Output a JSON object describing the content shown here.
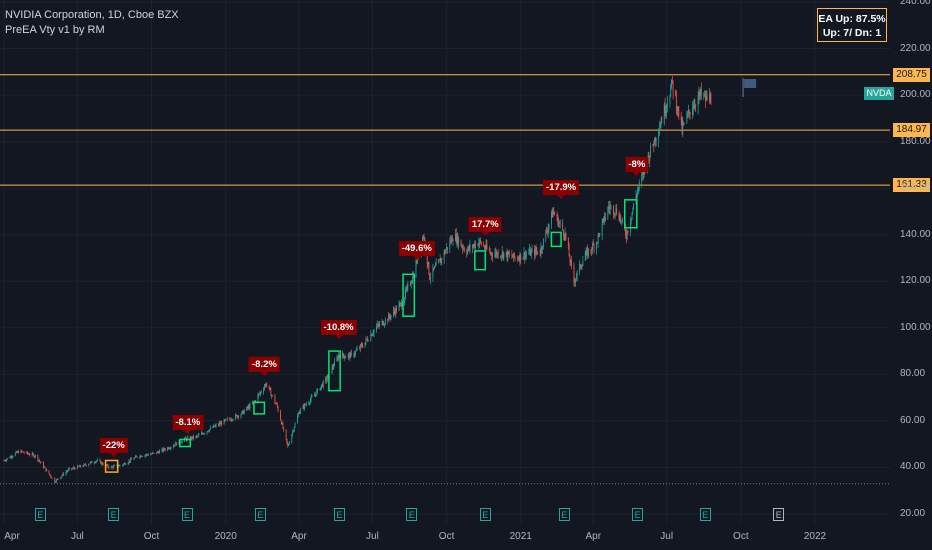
{
  "header": {
    "line1": "NVIDIA Corporation, 1D, Cboe BZX",
    "line2": "PreEA Vty v1 by RM"
  },
  "stats": {
    "line1": "EA Up: 87.5%",
    "line2": "Up: 7/ Dn: 1"
  },
  "ticker": "NVDA",
  "colors": {
    "background": "#131722",
    "up_candle": "#26a69a",
    "down_candle": "#ef5350",
    "level_line": "#ffb74d",
    "box_green": "#00e676",
    "box_orange": "#ffa726",
    "label_red": "#8b0000"
  },
  "chart_data": {
    "type": "candlestick",
    "title": "NVIDIA Corporation, 1D, Cboe BZX",
    "x_axis": [
      "Apr",
      "Jul",
      "Oct",
      "2020",
      "Apr",
      "Jul",
      "Oct",
      "2021",
      "Apr",
      "Jul",
      "Oct",
      "2022"
    ],
    "y_axis": {
      "ticks": [
        "20.00",
        "40.00",
        "60.00",
        "80.00",
        "100.00",
        "120.00",
        "140.00",
        "160.00",
        "180.00",
        "200.00",
        "220.00",
        "240.00"
      ],
      "range": [
        15,
        240
      ]
    },
    "price_levels": [
      {
        "value": "208.75",
        "color": "#ffb74d"
      },
      {
        "value": "184.97",
        "color": "#ffb74d"
      },
      {
        "value": "161.33",
        "color": "#ffb74d"
      }
    ],
    "dotted_level": 33,
    "price_path": [
      [
        "2019-04-01",
        43
      ],
      [
        "2019-04-20",
        47
      ],
      [
        "2019-05-10",
        45
      ],
      [
        "2019-05-25",
        38
      ],
      [
        "2019-06-03",
        34
      ],
      [
        "2019-06-20",
        39
      ],
      [
        "2019-07-10",
        41
      ],
      [
        "2019-07-25",
        43
      ],
      [
        "2019-08-10",
        40
      ],
      [
        "2019-08-25",
        41
      ],
      [
        "2019-09-15",
        45
      ],
      [
        "2019-10-05",
        46
      ],
      [
        "2019-10-25",
        49
      ],
      [
        "2019-11-10",
        52
      ],
      [
        "2019-11-25",
        53
      ],
      [
        "2019-12-15",
        57
      ],
      [
        "2020-01-01",
        60
      ],
      [
        "2020-01-20",
        63
      ],
      [
        "2020-02-05",
        68
      ],
      [
        "2020-02-20",
        76
      ],
      [
        "2020-03-05",
        66
      ],
      [
        "2020-03-18",
        49
      ],
      [
        "2020-04-01",
        64
      ],
      [
        "2020-04-20",
        71
      ],
      [
        "2020-05-05",
        78
      ],
      [
        "2020-05-20",
        88
      ],
      [
        "2020-06-05",
        88
      ],
      [
        "2020-06-20",
        93
      ],
      [
        "2020-07-05",
        100
      ],
      [
        "2020-07-20",
        104
      ],
      [
        "2020-08-05",
        110
      ],
      [
        "2020-08-20",
        122
      ],
      [
        "2020-09-02",
        140
      ],
      [
        "2020-09-10",
        122
      ],
      [
        "2020-09-25",
        130
      ],
      [
        "2020-10-10",
        140
      ],
      [
        "2020-10-25",
        133
      ],
      [
        "2020-11-10",
        137
      ],
      [
        "2020-11-25",
        132
      ],
      [
        "2020-12-10",
        132
      ],
      [
        "2020-12-25",
        130
      ],
      [
        "2021-01-10",
        132
      ],
      [
        "2021-01-25",
        133
      ],
      [
        "2021-02-10",
        150
      ],
      [
        "2021-02-25",
        140
      ],
      [
        "2021-03-08",
        120
      ],
      [
        "2021-03-20",
        130
      ],
      [
        "2021-04-05",
        137
      ],
      [
        "2021-04-20",
        152
      ],
      [
        "2021-05-01",
        150
      ],
      [
        "2021-05-12",
        140
      ],
      [
        "2021-05-25",
        158
      ],
      [
        "2021-06-10",
        175
      ],
      [
        "2021-06-25",
        190
      ],
      [
        "2021-07-08",
        205
      ],
      [
        "2021-07-20",
        185
      ],
      [
        "2021-08-01",
        195
      ],
      [
        "2021-08-12",
        200
      ],
      [
        "2021-08-20",
        198
      ],
      [
        "2021-08-25",
        200
      ]
    ],
    "earnings_boxes": [
      {
        "x0": "2019-08-05",
        "x1": "2019-08-20",
        "y0": 38,
        "y1": 43,
        "color": "orange"
      },
      {
        "x0": "2019-11-05",
        "x1": "2019-11-18",
        "y0": 49,
        "y1": 52,
        "color": "green"
      },
      {
        "x0": "2020-02-05",
        "x1": "2020-02-18",
        "y0": 63,
        "y1": 68,
        "color": "green"
      },
      {
        "x0": "2020-05-08",
        "x1": "2020-05-22",
        "y0": 73,
        "y1": 90,
        "color": "green"
      },
      {
        "x0": "2020-08-08",
        "x1": "2020-08-22",
        "y0": 105,
        "y1": 123,
        "color": "green"
      },
      {
        "x0": "2020-11-05",
        "x1": "2020-11-18",
        "y0": 125,
        "y1": 133,
        "color": "green"
      },
      {
        "x0": "2021-02-08",
        "x1": "2021-02-20",
        "y0": 135,
        "y1": 141,
        "color": "green"
      },
      {
        "x0": "2021-05-10",
        "x1": "2021-05-25",
        "y0": 143,
        "y1": 155,
        "color": "green"
      }
    ],
    "earnings_labels": [
      {
        "date": "2019-08-15",
        "price": 46,
        "text": "-22%"
      },
      {
        "date": "2019-11-15",
        "price": 56,
        "text": "-8.1%"
      },
      {
        "date": "2020-02-18",
        "price": 81,
        "text": "-8.2%"
      },
      {
        "date": "2020-05-20",
        "price": 97,
        "text": "-10.8%"
      },
      {
        "date": "2020-08-25",
        "price": 131,
        "text": "-49.6%"
      },
      {
        "date": "2020-11-18",
        "price": 141,
        "text": "17.7%"
      },
      {
        "date": "2021-02-20",
        "price": 157,
        "text": "-17.9%"
      },
      {
        "date": "2021-05-25",
        "price": 167,
        "text": "-8%"
      }
    ],
    "earnings_dates": [
      "2019-05-16",
      "2019-08-15",
      "2019-11-14",
      "2020-02-13",
      "2020-05-21",
      "2020-08-19",
      "2020-11-18",
      "2021-02-24",
      "2021-05-26",
      "2021-08-18"
    ],
    "future_earnings_date": "2021-11-17",
    "flag_date": "2021-10-10"
  }
}
